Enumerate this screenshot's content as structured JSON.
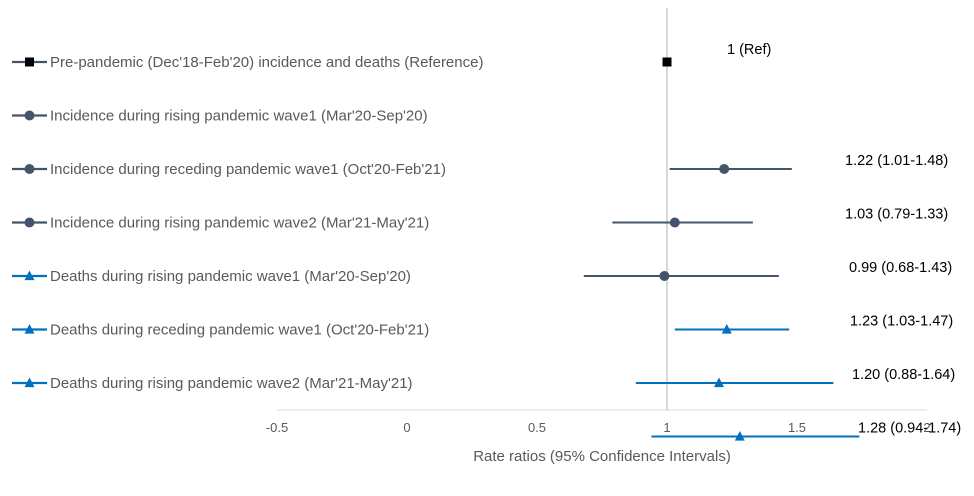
{
  "chart_data": {
    "type": "forest",
    "xlabel": "Rate ratios (95% Confidence Intervals)",
    "xlim": [
      -0.5,
      2
    ],
    "xticks": [
      -0.5,
      0,
      0.5,
      1,
      1.5,
      2
    ],
    "xtick_labels": [
      "-0.5",
      "0",
      "0.5",
      "1",
      "1.5",
      "2"
    ],
    "reference_line": 1,
    "grid": false,
    "legend_placement": "left",
    "series": [
      {
        "name": "Pre-pandemic (Dec'18-Feb'20) incidence and deaths (Reference)",
        "estimate": 1,
        "lower": 1,
        "upper": 1,
        "label": "1 (Ref)",
        "marker": "square",
        "color": "#000000"
      },
      {
        "name": "Incidence during rising pandemic wave1 (Mar'20-Sep'20)",
        "estimate": 1.22,
        "lower": 1.01,
        "upper": 1.48,
        "label": "1.22 (1.01-1.48)",
        "marker": "circle",
        "color": "#44546A"
      },
      {
        "name": "Incidence during receding pandemic wave1 (Oct'20-Feb'21)",
        "estimate": 1.03,
        "lower": 0.79,
        "upper": 1.33,
        "label": "1.03 (0.79-1.33)",
        "marker": "circle",
        "color": "#44546A"
      },
      {
        "name": "Incidence during rising pandemic wave2 (Mar'21-May'21)",
        "estimate": 0.99,
        "lower": 0.68,
        "upper": 1.43,
        "label": "0.99 (0.68-1.43)",
        "marker": "circle",
        "color": "#44546A"
      },
      {
        "name": "Deaths during rising pandemic wave1 (Mar'20-Sep'20)",
        "estimate": 1.23,
        "lower": 1.03,
        "upper": 1.47,
        "label": "1.23 (1.03-1.47)",
        "marker": "triangle",
        "color": "#0070C0"
      },
      {
        "name": "Deaths during receding pandemic wave1 (Oct'20-Feb'21)",
        "estimate": 1.2,
        "lower": 0.88,
        "upper": 1.64,
        "label": "1.20 (0.88-1.64)",
        "marker": "triangle",
        "color": "#0070C0"
      },
      {
        "name": "Deaths during rising pandemic wave2 (Mar'21-May'21)",
        "estimate": 1.28,
        "lower": 0.94,
        "upper": 1.74,
        "label": "1.28 (0.94-1.74)",
        "marker": "triangle",
        "color": "#0070C0"
      }
    ]
  }
}
